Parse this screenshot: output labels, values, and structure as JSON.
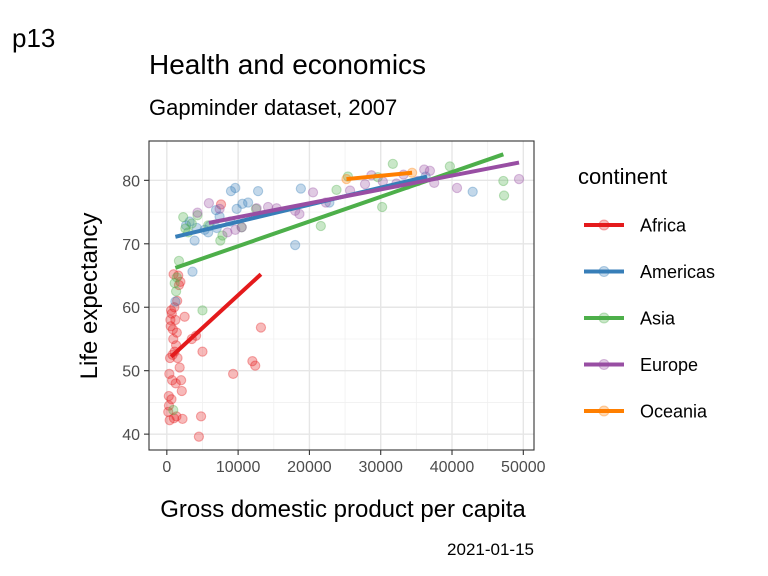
{
  "tag": "p13",
  "caption": "2021-01-15",
  "chart_data": {
    "type": "scatter",
    "title": "Health and economics",
    "subtitle": "Gapminder dataset, 2007",
    "xlabel": "Gross domestic product per capita",
    "ylabel": "Life expectancy",
    "xlim": [
      -2500,
      51500
    ],
    "ylim": [
      37.5,
      86.2
    ],
    "xticks": [
      0,
      10000,
      20000,
      30000,
      40000,
      50000
    ],
    "yticks": [
      40,
      50,
      60,
      70,
      80
    ],
    "grid": true,
    "point_opacity": 0.3,
    "legend": {
      "title": "continent",
      "placement": "right"
    },
    "series": [
      {
        "name": "Africa",
        "color": "#E41A1C",
        "points": [
          [
            200,
            43.5
          ],
          [
            280,
            46
          ],
          [
            300,
            44.5
          ],
          [
            350,
            49.5
          ],
          [
            400,
            42.2
          ],
          [
            450,
            52
          ],
          [
            500,
            58
          ],
          [
            550,
            57
          ],
          [
            600,
            59.5
          ],
          [
            650,
            45.5
          ],
          [
            700,
            59
          ],
          [
            750,
            48.5
          ],
          [
            800,
            52.5
          ],
          [
            850,
            56.5
          ],
          [
            900,
            55
          ],
          [
            950,
            65.2
          ],
          [
            1000,
            42.5
          ],
          [
            1050,
            60
          ],
          [
            1100,
            53
          ],
          [
            1200,
            58
          ],
          [
            1250,
            48
          ],
          [
            1300,
            54
          ],
          [
            1350,
            42.8
          ],
          [
            1400,
            56
          ],
          [
            1450,
            61
          ],
          [
            1500,
            52
          ],
          [
            1600,
            65
          ],
          [
            1700,
            63.5
          ],
          [
            1800,
            50.5
          ],
          [
            1900,
            64
          ],
          [
            2000,
            48.5
          ],
          [
            2100,
            46.8
          ],
          [
            2200,
            42.4
          ],
          [
            2500,
            58.5
          ],
          [
            3500,
            55
          ],
          [
            4100,
            55.5
          ],
          [
            4500,
            39.6
          ],
          [
            4800,
            42.8
          ],
          [
            5000,
            53
          ],
          [
            9300,
            49.5
          ],
          [
            12000,
            51.5
          ],
          [
            12400,
            50.8
          ],
          [
            13200,
            56.8
          ],
          [
            7600,
            76.2
          ]
        ],
        "trend": [
          [
            600,
            52.2
          ],
          [
            13200,
            65.2
          ]
        ]
      },
      {
        "name": "Americas",
        "color": "#377EB8",
        "points": [
          [
            1200,
            60.9
          ],
          [
            3600,
            65.6
          ],
          [
            3900,
            70.5
          ],
          [
            5800,
            71.8
          ],
          [
            6000,
            72.8
          ],
          [
            7000,
            72.5
          ],
          [
            7400,
            74.3
          ],
          [
            8900,
            73.5
          ],
          [
            9000,
            78.3
          ],
          [
            9600,
            78.8
          ],
          [
            9800,
            75.5
          ],
          [
            10600,
            76.3
          ],
          [
            11400,
            76.5
          ],
          [
            12800,
            78.3
          ],
          [
            5300,
            72.2
          ],
          [
            4200,
            72.5
          ],
          [
            3200,
            73.5
          ],
          [
            2700,
            72.9
          ],
          [
            6900,
            75.3
          ],
          [
            18000,
            69.8
          ],
          [
            18800,
            78.7
          ],
          [
            22800,
            76.5
          ],
          [
            36300,
            80.6
          ],
          [
            42900,
            78.2
          ]
        ],
        "trend": [
          [
            1200,
            71.1
          ],
          [
            36500,
            80.6
          ]
        ]
      },
      {
        "name": "Asia",
        "color": "#4DAF4A",
        "points": [
          [
            900,
            43.8
          ],
          [
            1100,
            63.8
          ],
          [
            1300,
            62.5
          ],
          [
            1400,
            64.7
          ],
          [
            1700,
            67.3
          ],
          [
            2300,
            74.2
          ],
          [
            2600,
            72.4
          ],
          [
            3000,
            71.8
          ],
          [
            3500,
            73.2
          ],
          [
            4300,
            74.5
          ],
          [
            5000,
            59.5
          ],
          [
            5800,
            72.9
          ],
          [
            7500,
            70.5
          ],
          [
            7800,
            71.3
          ],
          [
            10500,
            72.6
          ],
          [
            12500,
            75.5
          ],
          [
            21600,
            72.8
          ],
          [
            23800,
            78.5
          ],
          [
            25400,
            80.6
          ],
          [
            29600,
            80.5
          ],
          [
            30200,
            75.8
          ],
          [
            31700,
            82.6
          ],
          [
            39700,
            82.2
          ],
          [
            47200,
            79.9
          ],
          [
            47300,
            77.6
          ]
        ],
        "trend": [
          [
            1200,
            66.2
          ],
          [
            47200,
            84.1
          ]
        ]
      },
      {
        "name": "Europe",
        "color": "#984EA3",
        "points": [
          [
            5900,
            76.4
          ],
          [
            7400,
            75.5
          ],
          [
            8500,
            71.8
          ],
          [
            9600,
            72.2
          ],
          [
            10500,
            72.6
          ],
          [
            12600,
            75.6
          ],
          [
            14200,
            75.8
          ],
          [
            15400,
            75.6
          ],
          [
            18000,
            75.2
          ],
          [
            18600,
            74.7
          ],
          [
            20500,
            78.1
          ],
          [
            22300,
            76.5
          ],
          [
            25700,
            78.4
          ],
          [
            27800,
            79.4
          ],
          [
            28700,
            80.8
          ],
          [
            30300,
            79.8
          ],
          [
            32200,
            79.5
          ],
          [
            33200,
            80.9
          ],
          [
            33700,
            79.3
          ],
          [
            35200,
            79.9
          ],
          [
            36100,
            81.7
          ],
          [
            36900,
            81.5
          ],
          [
            37500,
            79.6
          ],
          [
            40700,
            78.8
          ],
          [
            49400,
            80.2
          ],
          [
            4300,
            74.9
          ]
        ],
        "trend": [
          [
            5900,
            73.3
          ],
          [
            49400,
            82.8
          ]
        ]
      },
      {
        "name": "Oceania",
        "color": "#FF7F00",
        "points": [
          [
            25200,
            80.2
          ],
          [
            34400,
            81.2
          ]
        ],
        "trend": [
          [
            25200,
            80.2
          ],
          [
            34400,
            81.2
          ]
        ]
      }
    ]
  }
}
